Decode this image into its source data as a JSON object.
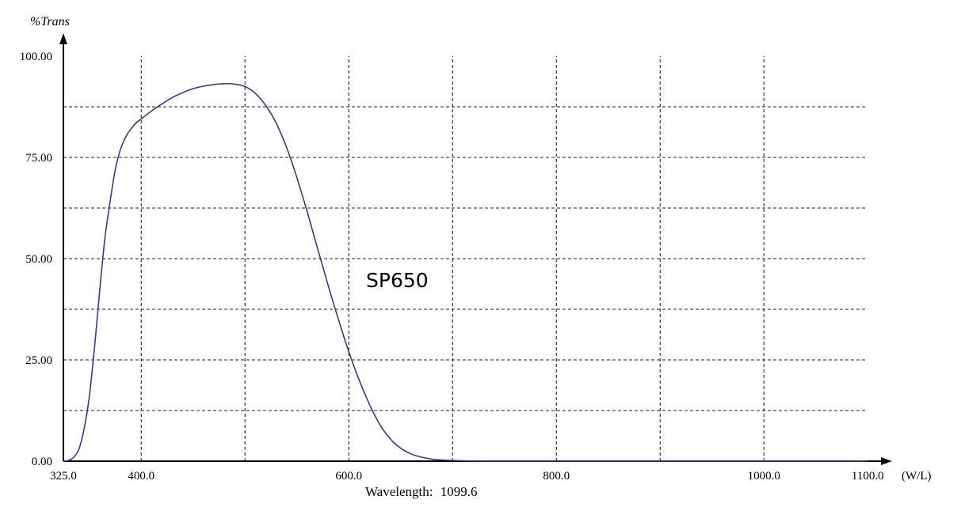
{
  "chart_data": {
    "type": "line",
    "ylabel": "%Trans",
    "xunit": "(W/L)",
    "xlim": [
      325.0,
      1100.0
    ],
    "ylim": [
      0.0,
      100.0
    ],
    "x_ticks": [
      "325.0",
      "400.0",
      "600.0",
      "800.0",
      "1000.0",
      "1100.0"
    ],
    "y_ticks": [
      "0.00",
      "25.00",
      "50.00",
      "75.00",
      "100.00"
    ],
    "x_grid_lines": [
      400,
      500,
      600,
      700,
      800,
      900,
      1000
    ],
    "y_grid_lines": [
      12.5,
      25,
      37.5,
      50,
      62.5,
      75,
      87.5
    ],
    "grid": "dashed",
    "status_label": "Wavelength:",
    "status_value": "1099.6",
    "annotation": "SP650",
    "series": [
      {
        "color": "#3a3a8c",
        "x": [
          325,
          330,
          335,
          340,
          345,
          350,
          355,
          360,
          365,
          370,
          375,
          380,
          385,
          390,
          395,
          400,
          410,
          420,
          430,
          440,
          450,
          460,
          470,
          480,
          490,
          500,
          510,
          520,
          530,
          540,
          550,
          560,
          570,
          580,
          590,
          600,
          610,
          620,
          630,
          640,
          650,
          660,
          670,
          680,
          690,
          700,
          710,
          720,
          740,
          760,
          800,
          900,
          1000,
          1100
        ],
        "y": [
          0.0,
          0.2,
          1.0,
          3.0,
          8.0,
          16.0,
          28.0,
          42.0,
          55.0,
          64.0,
          72.0,
          77.0,
          80.0,
          82.0,
          83.5,
          84.5,
          86.5,
          88.2,
          89.8,
          91.0,
          92.0,
          92.6,
          93.0,
          93.2,
          93.1,
          92.5,
          90.8,
          87.8,
          83.5,
          77.5,
          70.0,
          61.5,
          52.5,
          43.5,
          35.0,
          27.0,
          20.0,
          14.0,
          9.0,
          5.5,
          3.2,
          1.8,
          1.0,
          0.5,
          0.3,
          0.2,
          0.1,
          0.05,
          0.0,
          0.0,
          0.0,
          0.0,
          0.0,
          0.0
        ]
      }
    ]
  }
}
